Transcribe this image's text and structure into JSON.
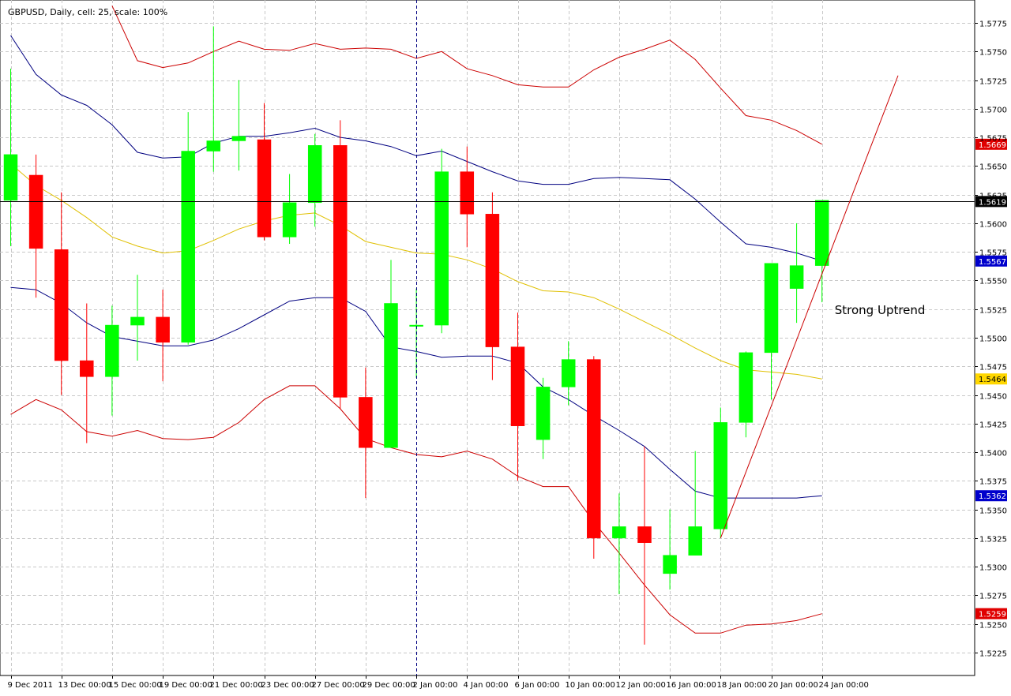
{
  "chart_data": {
    "type": "candlestick",
    "title": "GBPUSD, Daily, cell: 25, scale: 100%",
    "ylim": [
      1.5205,
      1.5795
    ],
    "y_ticks": [
      "1.5775",
      "1.5750",
      "1.5725",
      "1.5700",
      "1.5675",
      "1.5650",
      "1.5625",
      "1.5600",
      "1.5575",
      "1.5550",
      "1.5525",
      "1.5500",
      "1.5475",
      "1.5450",
      "1.5425",
      "1.5400",
      "1.5375",
      "1.5350",
      "1.5325",
      "1.5300",
      "1.5275",
      "1.5250",
      "1.5225"
    ],
    "x_labels": [
      "9 Dec 2011",
      "13 Dec 00:00",
      "15 Dec 00:00",
      "19 Dec 00:00",
      "21 Dec 00:00",
      "23 Dec 00:00",
      "27 Dec 00:00",
      "29 Dec 00:00",
      "2 Jan 00:00",
      "4 Jan 00:00",
      "6 Jan 00:00",
      "10 Jan 00:00",
      "12 Jan 00:00",
      "16 Jan 00:00",
      "18 Jan 00:00",
      "20 Jan 00:00",
      "24 Jan 00:00"
    ],
    "grid": true,
    "candles": [
      {
        "o": 1.562,
        "h": 1.5735,
        "l": 1.558,
        "c": 1.566
      },
      {
        "o": 1.5642,
        "h": 1.566,
        "l": 1.5535,
        "c": 1.5578
      },
      {
        "o": 1.5577,
        "h": 1.5627,
        "l": 1.545,
        "c": 1.548
      },
      {
        "o": 1.548,
        "h": 1.553,
        "l": 1.5408,
        "c": 1.5466
      },
      {
        "o": 1.5466,
        "h": 1.5528,
        "l": 1.5432,
        "c": 1.5511
      },
      {
        "o": 1.5511,
        "h": 1.5555,
        "l": 1.548,
        "c": 1.5518
      },
      {
        "o": 1.5518,
        "h": 1.5542,
        "l": 1.5462,
        "c": 1.5496
      },
      {
        "o": 1.5496,
        "h": 1.5697,
        "l": 1.5494,
        "c": 1.5663
      },
      {
        "o": 1.5663,
        "h": 1.5772,
        "l": 1.5645,
        "c": 1.5672
      },
      {
        "o": 1.5672,
        "h": 1.5725,
        "l": 1.5646,
        "c": 1.5676
      },
      {
        "o": 1.5673,
        "h": 1.5705,
        "l": 1.5585,
        "c": 1.5588
      },
      {
        "o": 1.5588,
        "h": 1.5643,
        "l": 1.5582,
        "c": 1.5618
      },
      {
        "o": 1.5618,
        "h": 1.5678,
        "l": 1.5597,
        "c": 1.5668
      },
      {
        "o": 1.5668,
        "h": 1.569,
        "l": 1.5438,
        "c": 1.5448
      },
      {
        "o": 1.5448,
        "h": 1.5474,
        "l": 1.536,
        "c": 1.5404
      },
      {
        "o": 1.5404,
        "h": 1.5568,
        "l": 1.5404,
        "c": 1.553
      },
      {
        "o": 1.551,
        "h": 1.5543,
        "l": 1.5465,
        "c": 1.5511
      },
      {
        "o": 1.5511,
        "h": 1.5665,
        "l": 1.5504,
        "c": 1.5645
      },
      {
        "o": 1.5645,
        "h": 1.5667,
        "l": 1.5579,
        "c": 1.5608
      },
      {
        "o": 1.5608,
        "h": 1.5627,
        "l": 1.5463,
        "c": 1.5492
      },
      {
        "o": 1.5492,
        "h": 1.5522,
        "l": 1.5375,
        "c": 1.5423
      },
      {
        "o": 1.5411,
        "h": 1.5465,
        "l": 1.5394,
        "c": 1.5457
      },
      {
        "o": 1.5457,
        "h": 1.5497,
        "l": 1.5441,
        "c": 1.5481
      },
      {
        "o": 1.5481,
        "h": 1.5484,
        "l": 1.5307,
        "c": 1.5325
      },
      {
        "o": 1.5325,
        "h": 1.5364,
        "l": 1.5276,
        "c": 1.5335
      },
      {
        "o": 1.5335,
        "h": 1.5405,
        "l": 1.5232,
        "c": 1.5321
      },
      {
        "o": 1.5294,
        "h": 1.535,
        "l": 1.528,
        "c": 1.531
      },
      {
        "o": 1.531,
        "h": 1.5401,
        "l": 1.531,
        "c": 1.5335
      },
      {
        "o": 1.5333,
        "h": 1.5439,
        "l": 1.5325,
        "c": 1.5426
      },
      {
        "o": 1.5426,
        "h": 1.5488,
        "l": 1.5413,
        "c": 1.5487
      },
      {
        "o": 1.5487,
        "h": 1.5565,
        "l": 1.5446,
        "c": 1.5565
      },
      {
        "o": 1.5543,
        "h": 1.56,
        "l": 1.5513,
        "c": 1.5563
      },
      {
        "o": 1.5563,
        "h": 1.562,
        "l": 1.5531,
        "c": 1.562
      }
    ],
    "series": [
      {
        "color": "#cc0000",
        "values": [
          null,
          null,
          null,
          null,
          1.579,
          1.5742,
          1.5736,
          1.574,
          1.575,
          1.5759,
          1.5752,
          1.5751,
          1.5757,
          1.5752,
          1.5753,
          1.5752,
          1.5744,
          1.575,
          1.5735,
          1.5729,
          1.5721,
          1.5719,
          1.5719,
          1.5734,
          1.5745,
          1.5752,
          1.576,
          1.5743,
          1.5718,
          1.5694,
          1.569,
          1.5681,
          1.5669
        ]
      },
      {
        "color": "#000080",
        "values": [
          1.5764,
          1.573,
          1.5712,
          1.5703,
          1.5686,
          1.5662,
          1.5657,
          1.5658,
          1.567,
          1.5676,
          1.5676,
          1.5679,
          1.5683,
          1.5675,
          1.5672,
          1.5667,
          1.5659,
          1.5663,
          1.5654,
          1.5645,
          1.5637,
          1.5634,
          1.5634,
          1.5639,
          1.564,
          1.5639,
          1.5638,
          1.5621,
          1.5601,
          1.5582,
          1.5579,
          1.5574,
          1.5567
        ]
      },
      {
        "color": "#e0c000",
        "values": [
          1.5652,
          1.5633,
          1.562,
          1.5605,
          1.5588,
          1.558,
          1.5574,
          1.5576,
          1.5585,
          1.5595,
          1.5602,
          1.5607,
          1.5609,
          1.5598,
          1.5584,
          1.5579,
          1.5574,
          1.5573,
          1.5568,
          1.556,
          1.5549,
          1.5541,
          1.554,
          1.5535,
          1.5525,
          1.5514,
          1.5503,
          1.5491,
          1.548,
          1.5472,
          1.547,
          1.5468,
          1.5464
        ]
      },
      {
        "color": "#000080",
        "values": [
          1.5544,
          1.5542,
          1.553,
          1.5513,
          1.5501,
          1.5497,
          1.5493,
          1.5493,
          1.5498,
          1.5508,
          1.552,
          1.5532,
          1.5535,
          1.5535,
          1.5523,
          1.5492,
          1.5488,
          1.5483,
          1.5484,
          1.5484,
          1.5478,
          1.5457,
          1.5446,
          1.5432,
          1.5419,
          1.5405,
          1.5385,
          1.5366,
          1.536,
          1.536,
          1.536,
          1.536,
          1.5362
        ]
      },
      {
        "color": "#cc0000",
        "values": [
          1.5433,
          1.5446,
          1.5437,
          1.5418,
          1.5414,
          1.5419,
          1.5412,
          1.5411,
          1.5413,
          1.5426,
          1.5446,
          1.5458,
          1.5458,
          1.5438,
          1.5412,
          1.5404,
          1.5398,
          1.5396,
          1.5401,
          1.5394,
          1.5379,
          1.537,
          1.537,
          1.5339,
          1.5312,
          1.5284,
          1.5258,
          1.5242,
          1.5242,
          1.5249,
          1.525,
          1.5253,
          1.5259
        ]
      }
    ],
    "trendline": {
      "color": "#cc0000",
      "from": {
        "bar": 28,
        "y": 1.5325
      },
      "to": {
        "bar": 35,
        "y": 1.5729
      }
    },
    "hline": {
      "y": 1.5619,
      "label": "1.5619",
      "color": "#000000"
    },
    "vline": {
      "bar": 16,
      "color": "#000080"
    },
    "price_tags": [
      {
        "y": 1.5669,
        "label": "1.5669",
        "color": "#e00000"
      },
      {
        "y": 1.5619,
        "label": "1.5619",
        "color": "#000000"
      },
      {
        "y": 1.5567,
        "label": "1.5567",
        "color": "#0000cc"
      },
      {
        "y": 1.5464,
        "label": "1.5464",
        "color": "#ffd700",
        "text_color": "#000000"
      },
      {
        "y": 1.5362,
        "label": "1.5362",
        "color": "#0000cc"
      },
      {
        "y": 1.5259,
        "label": "1.5259",
        "color": "#e00000"
      }
    ],
    "annotation": {
      "text": "Strong Uptrend",
      "bar": 32.5,
      "y": 1.5524
    },
    "colors": {
      "up": "#00ff00",
      "down": "#ff0000",
      "grid": "#c8c8c8",
      "background": "#ffffff",
      "frame": "#000000"
    }
  }
}
